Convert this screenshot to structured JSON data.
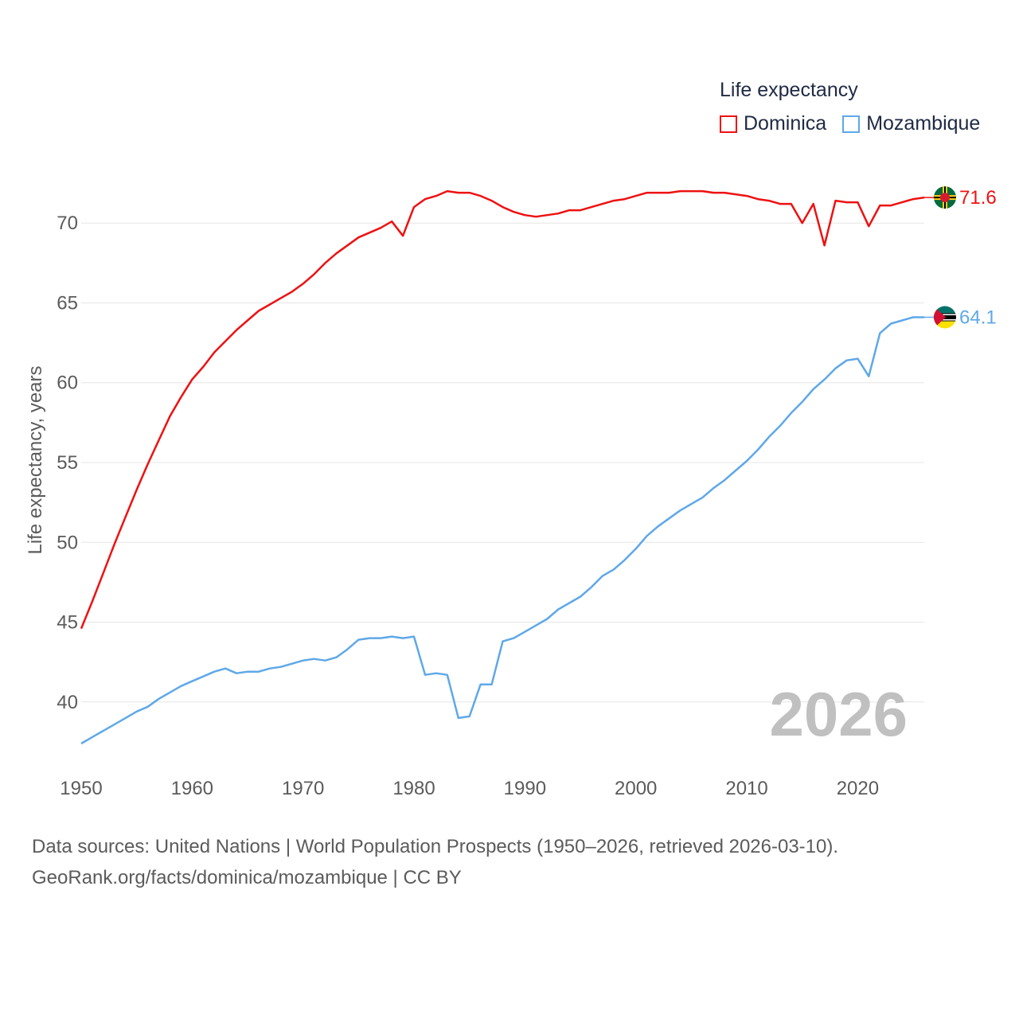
{
  "legend": {
    "title": "Life expectancy",
    "items": [
      {
        "label": "Dominica",
        "color": "#ee1111"
      },
      {
        "label": "Mozambique",
        "color": "#5fa8e8"
      }
    ]
  },
  "current_year": "2026",
  "source": {
    "line1": "Data sources: United Nations | World Population Prospects (1950–2026, retrieved 2026-03-10).",
    "line2": "GeoRank.org/facts/dominica/mozambique | CC BY"
  },
  "chart_data": {
    "type": "line",
    "title": "Life expectancy",
    "xlabel": "",
    "ylabel": "Life expectancy, years",
    "xlim": [
      1950,
      2026
    ],
    "ylim": [
      36.5,
      73.5
    ],
    "x_ticks": [
      1950,
      1960,
      1970,
      1980,
      1990,
      2000,
      2010,
      2020
    ],
    "y_ticks": [
      40,
      45,
      50,
      55,
      60,
      65,
      70
    ],
    "grid": "horizontal",
    "legend_position": "top-right",
    "x": [
      1950,
      1951,
      1952,
      1953,
      1954,
      1955,
      1956,
      1957,
      1958,
      1959,
      1960,
      1961,
      1962,
      1963,
      1964,
      1965,
      1966,
      1967,
      1968,
      1969,
      1970,
      1971,
      1972,
      1973,
      1974,
      1975,
      1976,
      1977,
      1978,
      1979,
      1980,
      1981,
      1982,
      1983,
      1984,
      1985,
      1986,
      1987,
      1988,
      1989,
      1990,
      1991,
      1992,
      1993,
      1994,
      1995,
      1996,
      1997,
      1998,
      1999,
      2000,
      2001,
      2002,
      2003,
      2004,
      2005,
      2006,
      2007,
      2008,
      2009,
      2010,
      2011,
      2012,
      2013,
      2014,
      2015,
      2016,
      2017,
      2018,
      2019,
      2020,
      2021,
      2022,
      2023,
      2024,
      2025,
      2026
    ],
    "series": [
      {
        "name": "Dominica",
        "color": "#ee1111",
        "end_label": "71.6",
        "values": [
          44.6,
          46.3,
          48.1,
          49.9,
          51.6,
          53.3,
          54.9,
          56.4,
          57.9,
          59.1,
          60.2,
          61.0,
          61.9,
          62.6,
          63.3,
          63.9,
          64.5,
          64.9,
          65.3,
          65.7,
          66.2,
          66.8,
          67.5,
          68.1,
          68.6,
          69.1,
          69.4,
          69.7,
          70.1,
          69.2,
          71.0,
          71.5,
          71.7,
          72.0,
          71.9,
          71.9,
          71.7,
          71.4,
          71.0,
          70.7,
          70.5,
          70.4,
          70.5,
          70.6,
          70.8,
          70.8,
          71.0,
          71.2,
          71.4,
          71.5,
          71.7,
          71.9,
          71.9,
          71.9,
          72.0,
          72.0,
          72.0,
          71.9,
          71.9,
          71.8,
          71.7,
          71.5,
          71.4,
          71.2,
          71.2,
          70.0,
          71.2,
          68.6,
          71.4,
          71.3,
          71.3,
          69.8,
          71.1,
          71.1,
          71.3,
          71.5,
          71.6
        ]
      },
      {
        "name": "Mozambique",
        "color": "#5fa8e8",
        "end_label": "64.1",
        "values": [
          37.4,
          37.8,
          38.2,
          38.6,
          39.0,
          39.4,
          39.7,
          40.2,
          40.6,
          41.0,
          41.3,
          41.6,
          41.9,
          42.1,
          41.8,
          41.9,
          41.9,
          42.1,
          42.2,
          42.4,
          42.6,
          42.7,
          42.6,
          42.8,
          43.3,
          43.9,
          44.0,
          44.0,
          44.1,
          44.0,
          44.1,
          41.7,
          41.8,
          41.7,
          39.0,
          39.1,
          41.1,
          41.1,
          43.8,
          44.0,
          44.4,
          44.8,
          45.2,
          45.8,
          46.2,
          46.6,
          47.2,
          47.9,
          48.3,
          48.9,
          49.6,
          50.4,
          51.0,
          51.5,
          52.0,
          52.4,
          52.8,
          53.4,
          53.9,
          54.5,
          55.1,
          55.8,
          56.6,
          57.3,
          58.1,
          58.8,
          59.6,
          60.2,
          60.9,
          61.4,
          61.5,
          60.4,
          63.1,
          63.7,
          63.9,
          64.1,
          64.1
        ]
      }
    ]
  }
}
